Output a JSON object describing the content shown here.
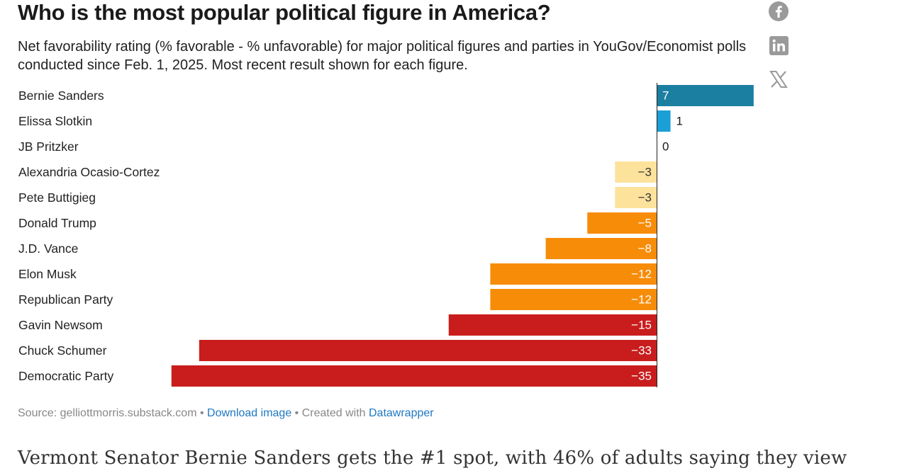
{
  "article": {
    "title": "Who is the most popular political figure in America?",
    "subtitle": "Net favorability rating (% favorable - % unfavorable) for major political figures and parties in YouGov/Economist polls conducted since Feb. 1, 2025. Most recent result shown for each figure.",
    "body_text": "Vermont Senator Bernie Sanders gets the #1 spot, with 46% of adults saying they view"
  },
  "share": {
    "facebook_icon": "facebook-icon",
    "linkedin_icon": "linkedin-icon",
    "x_icon": "x-icon",
    "icon_color": "#9a9a9a"
  },
  "footer": {
    "source_text": "Source: gelliottmorris.substack.com",
    "separator": " • ",
    "download_link": "Download image",
    "created_with_text": "Created with",
    "datawrapper_link": "Datawrapper"
  },
  "chart_data": {
    "type": "bar",
    "orientation": "horizontal",
    "title": "Who is the most popular political figure in America?",
    "xlabel": "",
    "ylabel": "",
    "xlim": [
      -35,
      7
    ],
    "grid": false,
    "categories": [
      "Bernie Sanders",
      "Elissa Slotkin",
      "JB Pritzker",
      "Alexandria Ocasio-Cortez",
      "Pete Buttigieg",
      "Donald Trump",
      "J.D. Vance",
      "Elon Musk",
      "Republican Party",
      "Gavin Newsom",
      "Chuck Schumer",
      "Democratic Party"
    ],
    "values": [
      7,
      1,
      0,
      -3,
      -3,
      -5,
      -8,
      -12,
      -12,
      -15,
      -33,
      -35
    ],
    "value_labels": [
      "7",
      "1",
      "0",
      "−3",
      "−3",
      "−5",
      "−8",
      "−12",
      "−12",
      "−15",
      "−33",
      "−35"
    ],
    "colors": [
      "#1b7fa1",
      "#1a9fd6",
      "#1a9fd6",
      "#fde29c",
      "#fde29c",
      "#f78c08",
      "#f78c08",
      "#f78c08",
      "#f78c08",
      "#c91d1d",
      "#c91d1d",
      "#c91d1d"
    ],
    "label_colors": [
      "#ffffff",
      "#1a1a1a",
      "#1a1a1a",
      "#333333",
      "#333333",
      "#ffffff",
      "#ffffff",
      "#ffffff",
      "#ffffff",
      "#ffffff",
      "#ffffff",
      "#ffffff"
    ],
    "axis_color": "#222222"
  }
}
